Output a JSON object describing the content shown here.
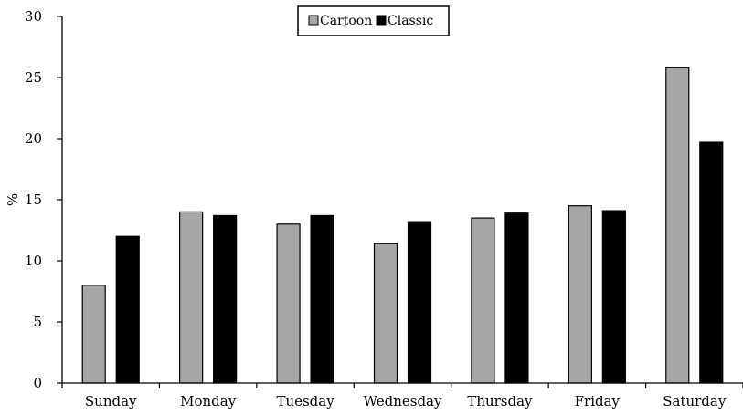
{
  "chart_data": {
    "type": "bar",
    "categories": [
      "Sunday",
      "Monday",
      "Tuesday",
      "Wednesday",
      "Thursday",
      "Friday",
      "Saturday"
    ],
    "series": [
      {
        "name": "Cartoon",
        "values": [
          8.0,
          14.0,
          13.0,
          11.4,
          13.5,
          14.5,
          25.8
        ]
      },
      {
        "name": "Classic",
        "values": [
          12.0,
          13.7,
          13.7,
          13.2,
          13.9,
          14.1,
          19.7
        ]
      }
    ],
    "ylabel": "%",
    "xlabel": "",
    "title": "",
    "ylim": [
      0,
      30
    ],
    "yticks": [
      0,
      5,
      10,
      15,
      20,
      25,
      30
    ],
    "grid": false,
    "legend_position": "top-center",
    "colors": {
      "Cartoon": "#a6a6a6",
      "Classic": "#000000",
      "axis": "#000000"
    }
  }
}
